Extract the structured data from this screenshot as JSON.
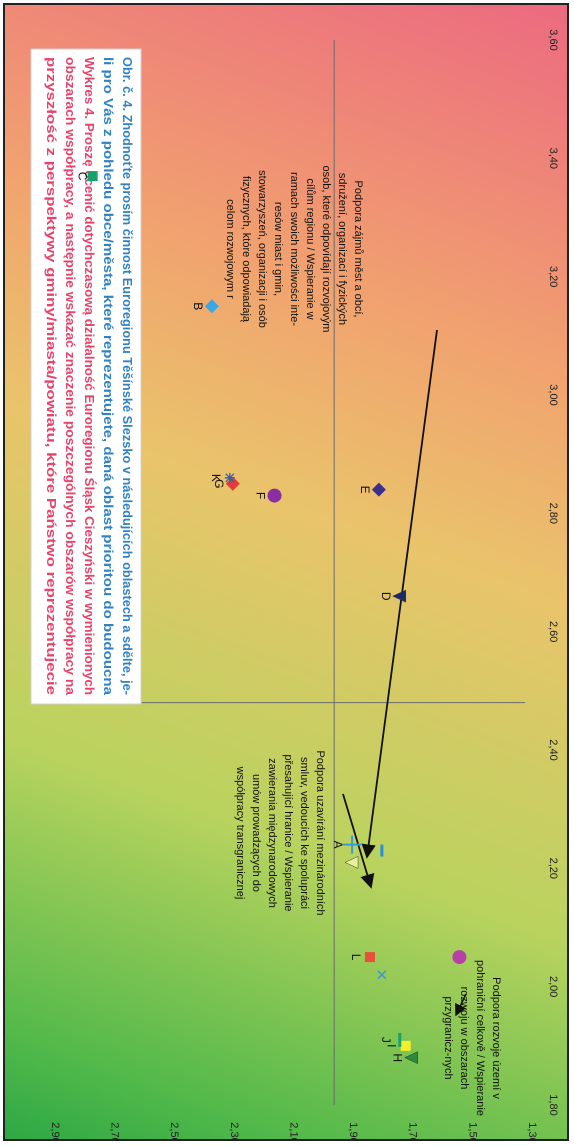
{
  "chart_data": {
    "type": "scatter",
    "orientation": "rotated-90-cw",
    "x_ticks": [
      "1,80",
      "2,00",
      "2,20",
      "2,40",
      "2,60",
      "2,80",
      "3,00",
      "3,20",
      "3,40",
      "3,60"
    ],
    "y_ticks": [
      "1,30",
      "1,50",
      "1,70",
      "1,90",
      "2,10",
      "2,30",
      "2,50",
      "2,70",
      "2,90"
    ],
    "xlim": [
      1.8,
      3.6
    ],
    "ylim": [
      1.3,
      2.95
    ],
    "reference_lines": {
      "x": 2.48,
      "y": 1.94
    },
    "title": {
      "line1": "Obr. č. 4. Zhodnoťte prosím činnost Euroregionu Těšínské Slezsko v následujících oblastech a sdělte, je-",
      "line2": "li pro Vás z pohledu obce/města, které reprezentujete, daná oblast prioritou do budoucna",
      "line3": "Wykres 4. Proszę ocenić dotychczasową działalność Euroregionu Śląsk Cieszyński w wymienionych",
      "line4": "obszarach współpracy, a następnie wskazać znaczenie poszczególnych obszarów współpracy na",
      "line5": "przyszłość z perspektywy gminy/miasta/powiatu, które Państwo reprezentujecie"
    },
    "title_colors": {
      "czech": "#2f82c4",
      "polish": "#e8436b"
    },
    "points": [
      {
        "label": "A",
        "x": 2.24,
        "y": 1.88,
        "marker": "plus",
        "color": "#3b9bd0"
      },
      {
        "label": "",
        "x": 2.21,
        "y": 1.88,
        "marker": "triangle",
        "color": "#e8f0a0"
      },
      {
        "label": "",
        "x": 2.23,
        "y": 1.78,
        "marker": "dash",
        "color": "#2a8fd6"
      },
      {
        "label": "B",
        "x": 3.15,
        "y": 2.35,
        "marker": "diamond",
        "color": "#38a8e6"
      },
      {
        "label": "C",
        "x": 3.37,
        "y": 2.75,
        "marker": "square",
        "color": "#1aa06b"
      },
      {
        "label": "D",
        "x": 2.66,
        "y": 1.72,
        "marker": "triangle",
        "color": "#1b2a6b"
      },
      {
        "label": "E",
        "x": 2.84,
        "y": 1.79,
        "marker": "diamond",
        "color": "#3b2f8e"
      },
      {
        "label": "F",
        "x": 2.83,
        "y": 2.14,
        "marker": "circle",
        "color": "#8a2fa0"
      },
      {
        "label": "G",
        "x": 2.85,
        "y": 2.28,
        "marker": "diamond",
        "color": "#e23b3b"
      },
      {
        "label": "K",
        "x": 2.86,
        "y": 2.29,
        "marker": "star",
        "color": "#3c5ca8"
      },
      {
        "label": "H",
        "x": 1.88,
        "y": 1.68,
        "marker": "triangle",
        "color": "#2c8a3c"
      },
      {
        "label": "I",
        "x": 1.9,
        "y": 1.7,
        "marker": "square",
        "color": "#f4ef2a"
      },
      {
        "label": "J",
        "x": 1.91,
        "y": 1.72,
        "marker": "bar",
        "color": "#1aa06b"
      },
      {
        "label": "L",
        "x": 2.05,
        "y": 1.82,
        "marker": "square",
        "color": "#e8503b"
      },
      {
        "label": "",
        "x": 2.02,
        "y": 1.78,
        "marker": "x",
        "color": "#3b9bd0"
      },
      {
        "label": "",
        "x": 2.05,
        "y": 1.52,
        "marker": "circle",
        "color": "#b73fa8"
      }
    ],
    "annotations": {
      "left": [
        "Podpora uzavírání mezinárodních",
        "smluv, vedoucích ke spolupráci",
        "přesahující hranice / Wspieranie",
        "zawierania międzynarodowych",
        "umów prowadzących do",
        "współpracy transgranicznej"
      ],
      "bottom": [
        "Podpora rozvoje území v",
        "pohraniční celkově / Wspieranie",
        "rozwoju w obszarach",
        "przygranicz-nych"
      ],
      "right": [
        "Podpora zájmů měst a obcí,",
        "sdružení, organizací i fyzických",
        "osob, které odpovídají rozvojovým",
        "cílům regionu / Wspieranie w",
        "ramach swoich możliwości inte-",
        "resów miast i gmin,",
        "stowarzyszeń, organizacji i osób",
        "fizycznych, które odpowiadają",
        "celom rozwojowym r"
      ]
    }
  }
}
